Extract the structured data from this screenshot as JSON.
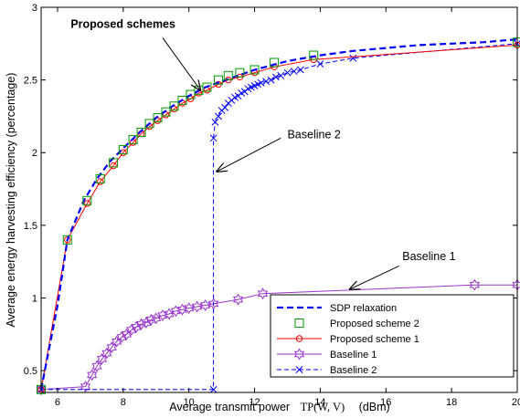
{
  "chart_data": {
    "type": "line",
    "title": "",
    "xlabel_prefix": "Average transmit power",
    "xlabel_math": "TP(W, V)",
    "xlabel_unit": "(dBm)",
    "ylabel": "Average energy harvesting efficiency (percentage)",
    "xlim": [
      5.5,
      20
    ],
    "ylim": [
      0.35,
      3
    ],
    "xticks": [
      6,
      8,
      10,
      12,
      14,
      16,
      18,
      20
    ],
    "xtick_labels": [
      "6",
      "8",
      "10",
      "12",
      "14",
      "16",
      "18",
      "20"
    ],
    "yticks": [
      0.5,
      1,
      1.5,
      2,
      2.5,
      3
    ],
    "ytick_labels": [
      "0.5",
      "1",
      "1.5",
      "2",
      "2.5",
      "3"
    ],
    "grid": false,
    "legend_position": "bottom-right",
    "series": [
      {
        "name": "SDP relaxation",
        "color": "#0000ff",
        "line": "dashed",
        "marker": "none",
        "x": [
          5.5,
          6.0,
          6.3,
          6.8,
          7.2,
          7.6,
          8.0,
          8.5,
          9.0,
          9.5,
          10.0,
          10.5,
          11.0,
          11.5,
          12.0,
          13.0,
          14.0,
          15.0,
          16.0,
          17.0,
          18.0,
          19.0,
          20.0
        ],
        "y": [
          0.37,
          0.95,
          1.4,
          1.67,
          1.82,
          1.94,
          2.03,
          2.14,
          2.24,
          2.32,
          2.39,
          2.45,
          2.49,
          2.53,
          2.57,
          2.63,
          2.67,
          2.7,
          2.72,
          2.74,
          2.75,
          2.76,
          2.78
        ]
      },
      {
        "name": "Proposed scheme 2",
        "color": "#009900",
        "line": "none",
        "marker": "square",
        "x": [
          5.5,
          6.3,
          6.9,
          7.3,
          7.7,
          8.0,
          8.3,
          8.55,
          8.8,
          9.05,
          9.3,
          9.55,
          9.8,
          10.05,
          10.3,
          10.55,
          10.9,
          11.2,
          11.55,
          12.0,
          12.6,
          13.8,
          20.0
        ],
        "y": [
          0.37,
          1.4,
          1.67,
          1.82,
          1.93,
          2.02,
          2.09,
          2.14,
          2.2,
          2.24,
          2.28,
          2.32,
          2.36,
          2.4,
          2.43,
          2.45,
          2.5,
          2.53,
          2.55,
          2.57,
          2.62,
          2.67,
          2.76
        ]
      },
      {
        "name": "Proposed scheme 1",
        "color": "#ff0000",
        "line": "solid",
        "marker": "circle",
        "x": [
          5.5,
          6.3,
          6.9,
          7.3,
          7.7,
          8.0,
          8.3,
          8.55,
          8.8,
          9.05,
          9.3,
          9.55,
          9.8,
          10.05,
          10.3,
          10.55,
          10.9,
          11.2,
          11.55,
          12.0,
          12.6,
          13.8,
          20.0
        ],
        "y": [
          0.37,
          1.4,
          1.65,
          1.8,
          1.91,
          2.0,
          2.07,
          2.13,
          2.18,
          2.22,
          2.26,
          2.3,
          2.34,
          2.37,
          2.41,
          2.43,
          2.47,
          2.5,
          2.52,
          2.55,
          2.59,
          2.64,
          2.74
        ]
      },
      {
        "name": "Baseline 1",
        "color": "#9933cc",
        "line": "solid",
        "marker": "hexagram",
        "x": [
          5.5,
          6.85,
          7.05,
          7.2,
          7.35,
          7.5,
          7.65,
          7.8,
          7.95,
          8.1,
          8.25,
          8.4,
          8.55,
          8.7,
          8.85,
          9.0,
          9.2,
          9.4,
          9.6,
          9.8,
          10.0,
          10.25,
          10.5,
          10.75,
          11.5,
          12.25,
          18.7,
          20.0
        ],
        "y": [
          0.37,
          0.39,
          0.47,
          0.53,
          0.58,
          0.62,
          0.66,
          0.7,
          0.73,
          0.75,
          0.78,
          0.8,
          0.82,
          0.83,
          0.85,
          0.86,
          0.88,
          0.89,
          0.91,
          0.92,
          0.93,
          0.94,
          0.95,
          0.96,
          0.99,
          1.03,
          1.09,
          1.09
        ]
      },
      {
        "name": "Baseline 2",
        "color": "#0000ff",
        "line": "dashed",
        "marker": "x",
        "x": [
          5.5,
          10.75,
          10.75,
          10.8,
          10.9,
          11.0,
          11.1,
          11.2,
          11.3,
          11.4,
          11.5,
          11.6,
          11.7,
          11.8,
          11.9,
          12.0,
          12.1,
          12.2,
          12.35,
          12.5,
          12.65,
          12.8,
          13.0,
          13.2,
          13.4,
          14.0,
          15.0,
          20.0
        ],
        "y": [
          0.37,
          0.37,
          2.1,
          2.21,
          2.25,
          2.29,
          2.31,
          2.34,
          2.36,
          2.38,
          2.39,
          2.41,
          2.42,
          2.44,
          2.45,
          2.46,
          2.47,
          2.48,
          2.49,
          2.5,
          2.52,
          2.53,
          2.55,
          2.56,
          2.57,
          2.61,
          2.65,
          2.75
        ]
      }
    ],
    "annotations": [
      {
        "text": "Proposed schemes",
        "bold": true,
        "text_x": 6.4,
        "text_y": 2.86,
        "arrow_to_x": 10.35,
        "arrow_to_y": 2.43,
        "arrow_from_x": 9.2,
        "arrow_from_y": 2.79
      },
      {
        "text": "Baseline 2",
        "bold": false,
        "text_x": 13.0,
        "text_y": 2.1,
        "arrow_to_x": 10.85,
        "arrow_to_y": 1.87,
        "arrow_from_x": 12.8,
        "arrow_from_y": 2.1
      },
      {
        "text": "Baseline 1",
        "bold": false,
        "text_x": 16.5,
        "text_y": 1.26,
        "arrow_to_x": 14.9,
        "arrow_to_y": 1.06,
        "arrow_from_x": 16.4,
        "arrow_from_y": 1.22
      }
    ]
  }
}
